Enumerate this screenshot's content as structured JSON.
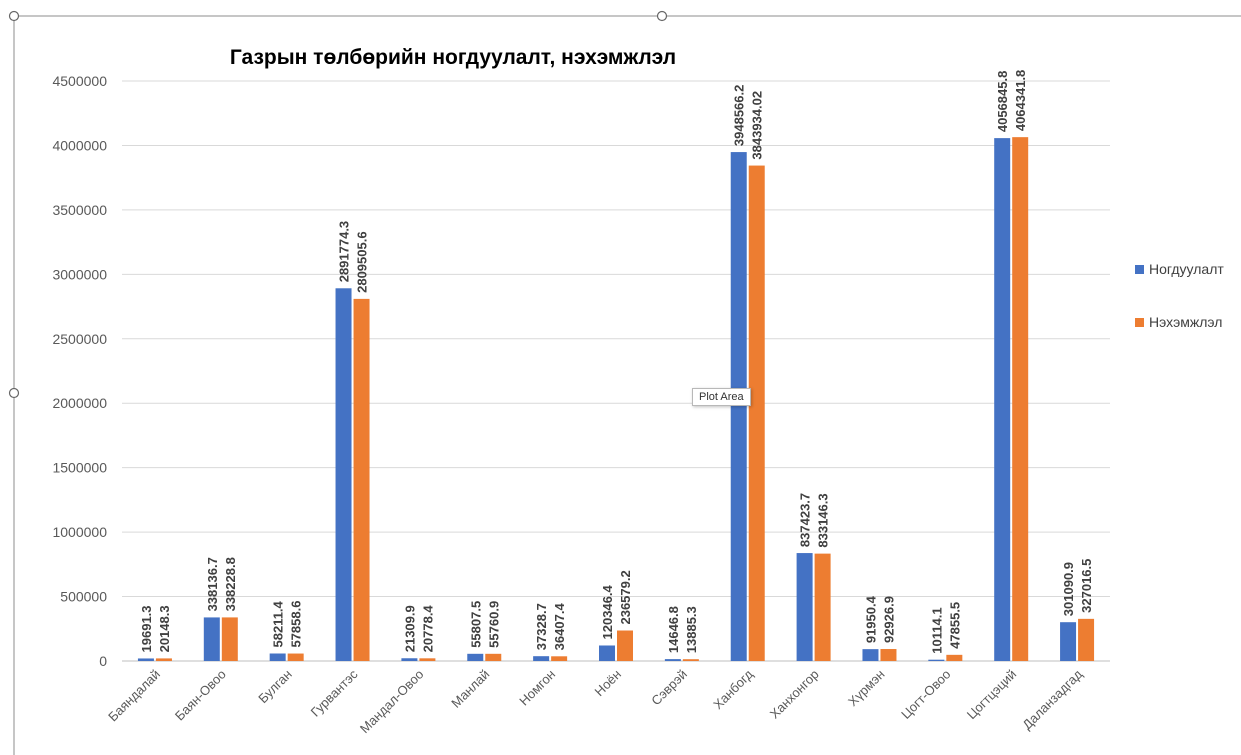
{
  "chart_data": {
    "type": "bar",
    "title": "Газрын төлбөрийн ногдуулалт, нэхэмжлэл",
    "categories": [
      "Баяндалай",
      "Баян-Овоо",
      "Булган",
      "Гурвантэс",
      "Мандал-Овоо",
      "Манлай",
      "Номгон",
      "Ноён",
      "Сэврэй",
      "Ханбогд",
      "Ханхонгор",
      "Хүрмэн",
      "Цогт-Овоо",
      "Цогтцэций",
      "Даланзадгад"
    ],
    "series": [
      {
        "name": "Ногдуулалт",
        "color": "#4472c4",
        "values": [
          19691.3,
          338136.7,
          58211.4,
          2891774.3,
          21309.9,
          55807.5,
          37328.7,
          120346.4,
          14646.8,
          3948566.2,
          837423.7,
          91950.4,
          10114.1,
          4056845.8,
          301090.9
        ]
      },
      {
        "name": "Нэхэмжлэл",
        "color": "#ed7d31",
        "values": [
          20148.3,
          338228.8,
          57858.6,
          2809505.6,
          20778.4,
          55760.9,
          36407.4,
          236579.2,
          13885.3,
          3843934.02,
          833146.3,
          92926.9,
          47855.5,
          4064341.8,
          327016.5
        ]
      }
    ],
    "yticks": [
      "0",
      "500000",
      "1000000",
      "1500000",
      "2000000",
      "2500000",
      "3000000",
      "3500000",
      "4000000",
      "4500000"
    ],
    "ylim": [
      0,
      4500000
    ],
    "grid": true,
    "legend_position": "right"
  },
  "tooltip": "Plot Area"
}
